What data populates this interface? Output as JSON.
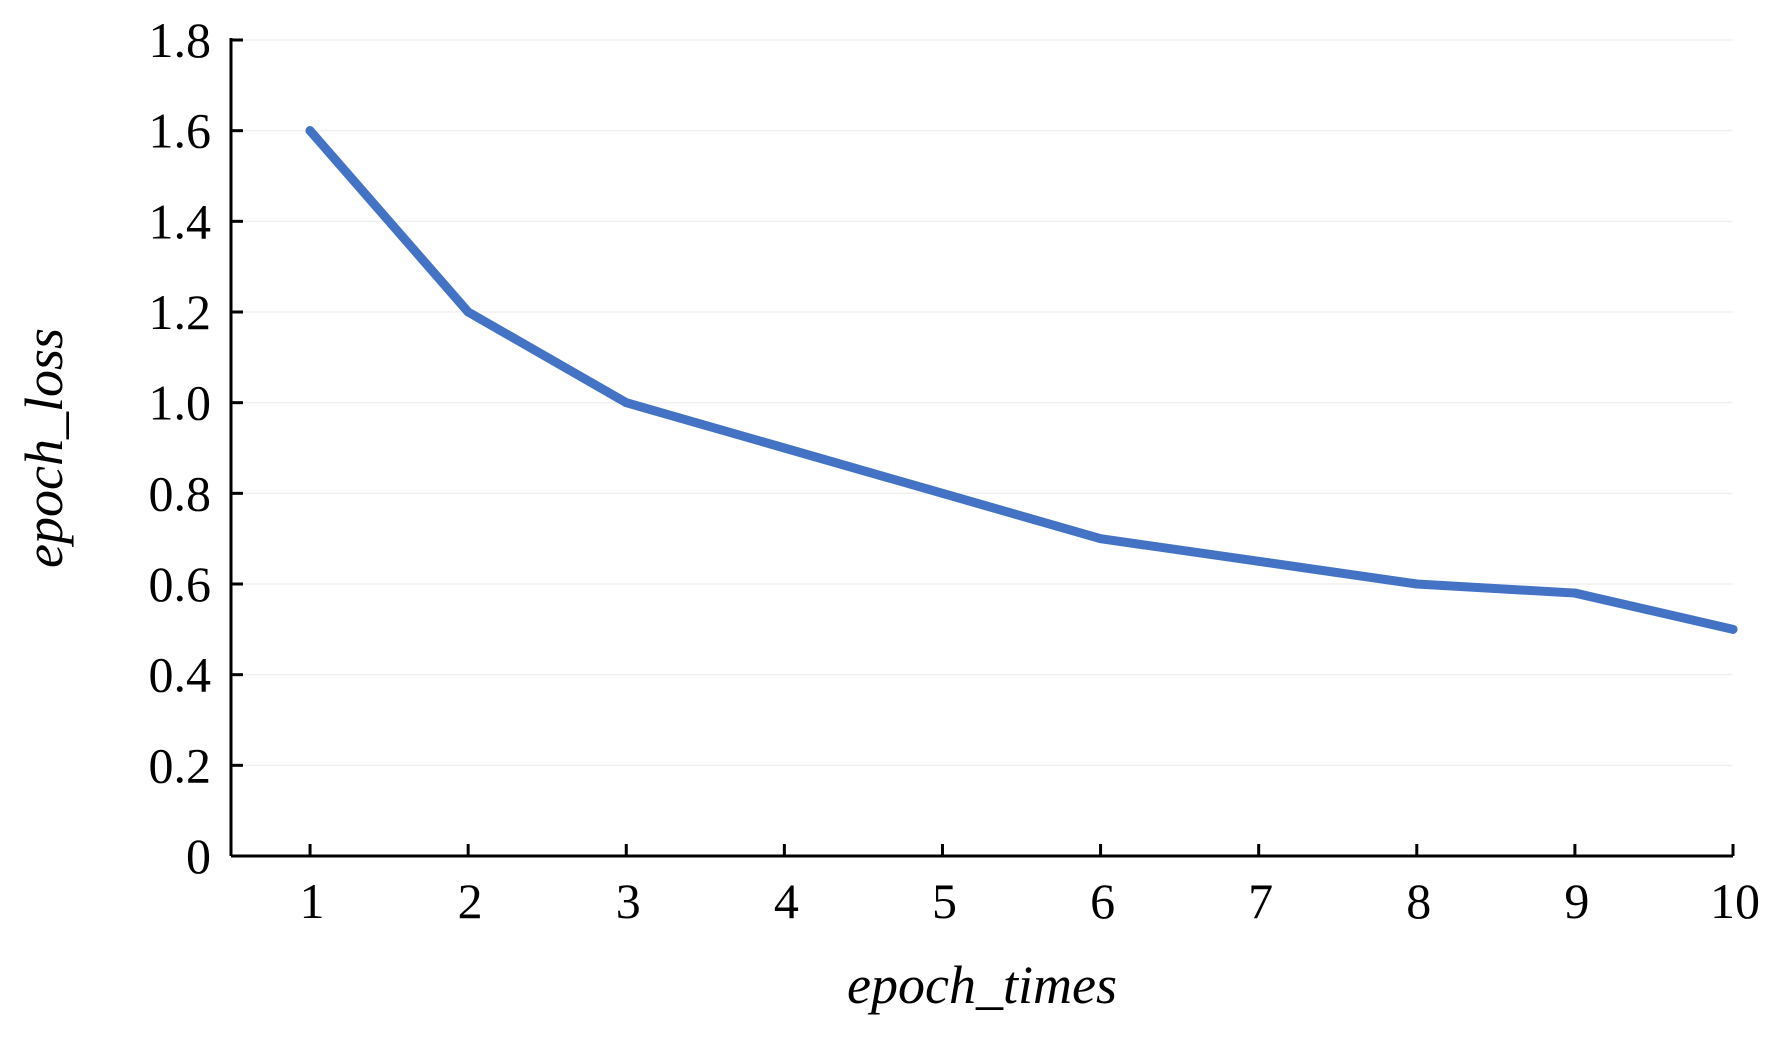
{
  "chart_data": {
    "type": "line",
    "title": "",
    "xlabel": "epoch_times",
    "ylabel": "epoch_loss",
    "x": [
      1,
      2,
      3,
      4,
      5,
      6,
      7,
      8,
      9,
      10
    ],
    "series": [
      {
        "values": [
          1.6,
          1.2,
          1.0,
          0.9,
          0.8,
          0.7,
          0.65,
          0.6,
          0.58,
          0.5
        ]
      }
    ],
    "xlim": [
      0.5,
      10
    ],
    "ylim": [
      0,
      1.8
    ],
    "xticks": [
      "1",
      "2",
      "3",
      "4",
      "5",
      "6",
      "7",
      "8",
      "9",
      "10"
    ],
    "yticks": [
      "0",
      "0.2",
      "0.4",
      "0.6",
      "0.8",
      "1.0",
      "1.2",
      "1.4",
      "1.6",
      "1.8"
    ],
    "grid": true,
    "legend": "none",
    "colors": {
      "line": "#4472C4",
      "axis": "#000000",
      "grid": "#f0f0f0"
    }
  }
}
